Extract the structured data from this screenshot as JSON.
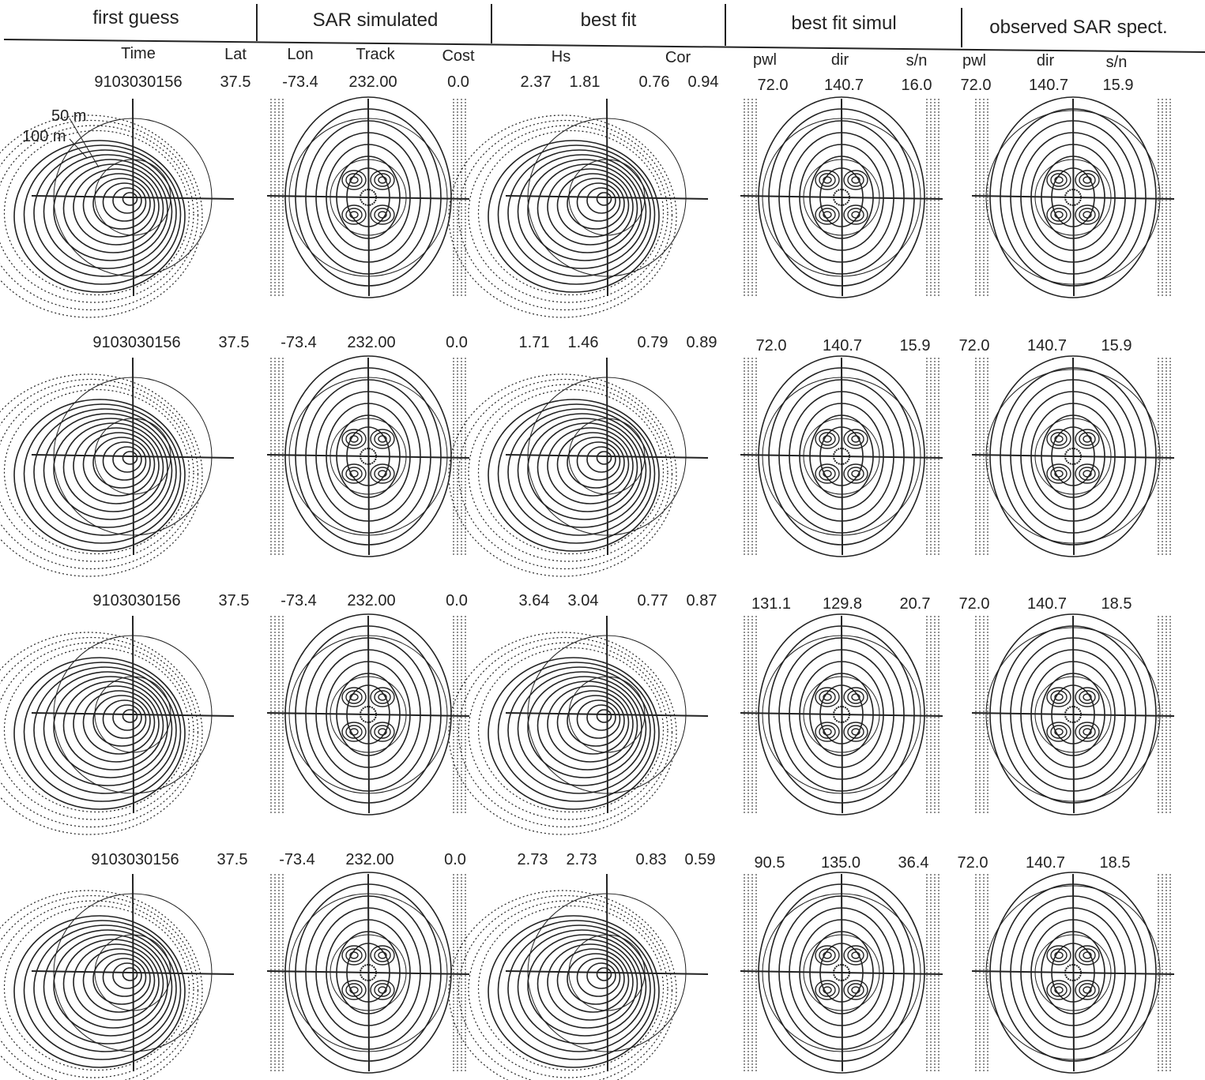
{
  "header": {
    "columns": [
      "first guess",
      "SAR simulated",
      "best fit",
      "best fit simul",
      "observed SAR spect."
    ]
  },
  "subheader": [
    "Time",
    "Lat",
    "Lon",
    "Track",
    "Cost",
    "Hs",
    "Cor",
    "pwl",
    "dir",
    "s/n",
    "pwl",
    "dir",
    "s/n"
  ],
  "rows": [
    {
      "values": [
        "9103030156",
        "37.5",
        "-73.4",
        "232.00",
        "0.0",
        "2.37",
        "1.81",
        "0.76",
        "0.94",
        "72.0",
        "140.7",
        "16.0",
        "72.0",
        "140.7",
        "15.9"
      ]
    },
    {
      "values": [
        "9103030156",
        "37.5",
        "-73.4",
        "232.00",
        "0.0",
        "1.71",
        "1.46",
        "0.79",
        "0.89",
        "72.0",
        "140.7",
        "15.9",
        "72.0",
        "140.7",
        "15.9"
      ]
    },
    {
      "values": [
        "9103030156",
        "37.5",
        "-73.4",
        "232.00",
        "0.0",
        "3.64",
        "3.04",
        "0.77",
        "0.87",
        "131.1",
        "129.8",
        "20.7",
        "72.0",
        "140.7",
        "18.5"
      ]
    },
    {
      "values": [
        "9103030156",
        "37.5",
        "-73.4",
        "232.00",
        "0.0",
        "2.73",
        "2.73",
        "0.83",
        "0.59",
        "90.5",
        "135.0",
        "36.4",
        "72.0",
        "140.7",
        "18.5"
      ]
    }
  ],
  "scale_labels": [
    "50 m",
    "100 m"
  ]
}
